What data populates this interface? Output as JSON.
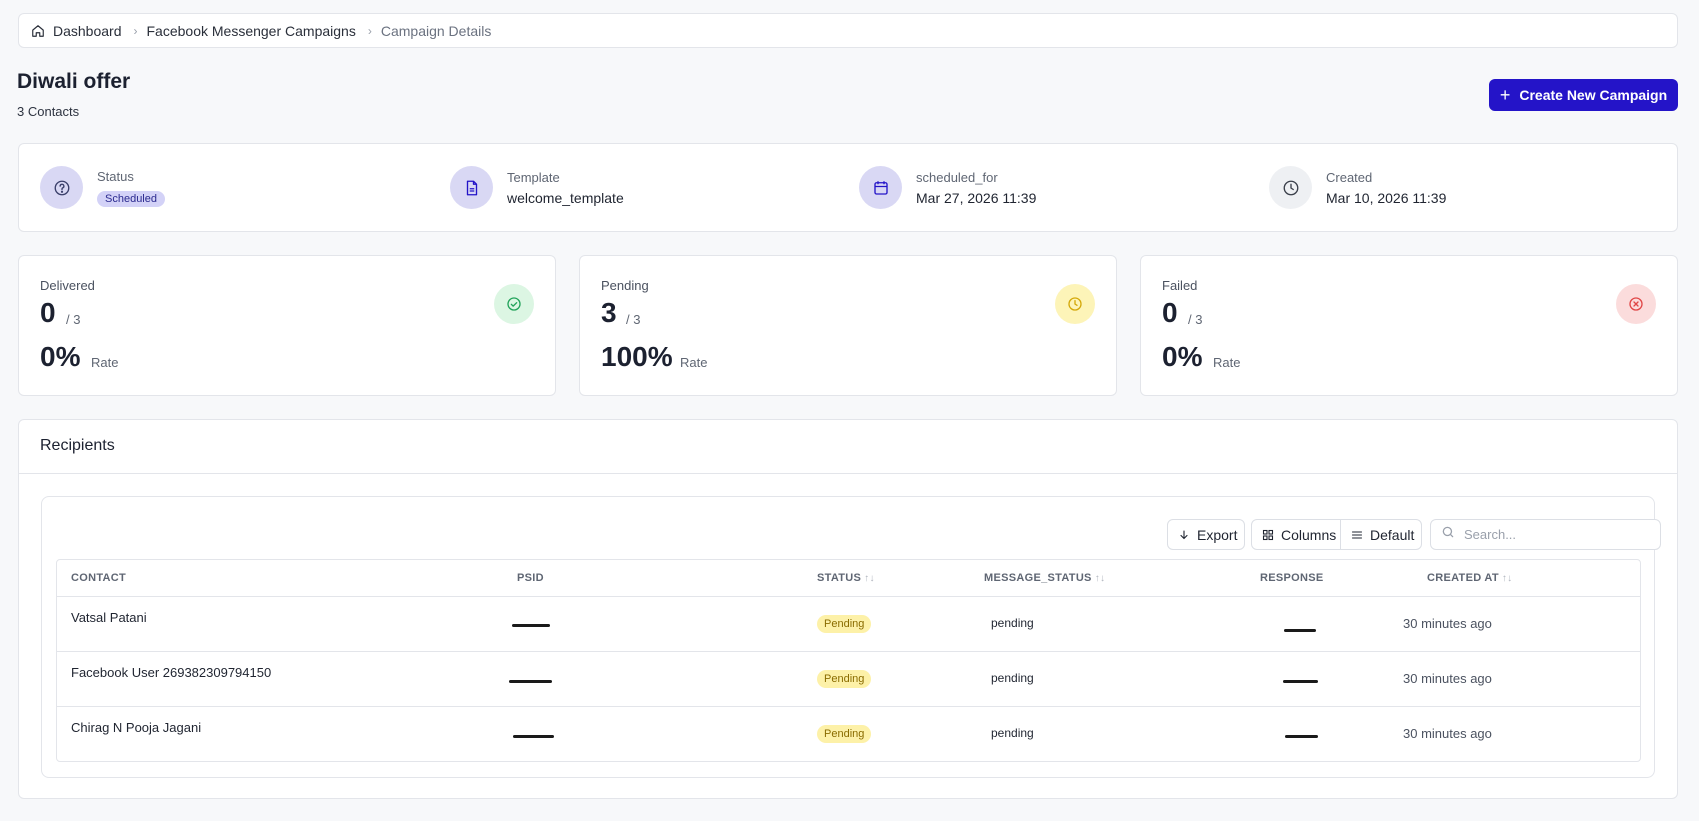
{
  "breadcrumb": {
    "items": [
      "Dashboard",
      "Facebook Messenger Campaigns",
      "Campaign Details"
    ]
  },
  "header": {
    "title": "Diwali offer",
    "subtitle": "3 Contacts",
    "create_button": "Create New Campaign"
  },
  "info": {
    "status_label": "Status",
    "status_value": "Scheduled",
    "template_label": "Template",
    "template_value": "welcome_template",
    "scheduled_label": "scheduled_for",
    "scheduled_value": "Mar 27, 2026 11:39",
    "created_label": "Created",
    "created_value": "Mar 10, 2026 11:39"
  },
  "stats": [
    {
      "label": "Delivered",
      "count": "0",
      "total": "/ 3",
      "rate": "0%",
      "rate_label": "Rate",
      "icon": "check-circle-icon",
      "color": "#22a35a"
    },
    {
      "label": "Pending",
      "count": "3",
      "total": "/ 3",
      "rate": "100%",
      "rate_label": "Rate",
      "icon": "clock-icon",
      "color": "#d4a80a"
    },
    {
      "label": "Failed",
      "count": "0",
      "total": "/ 3",
      "rate": "0%",
      "rate_label": "Rate",
      "icon": "x-circle-icon",
      "color": "#e04646"
    }
  ],
  "recipients": {
    "title": "Recipients",
    "toolbar": {
      "export": "Export",
      "columns": "Columns",
      "default": "Default",
      "search_placeholder": "Search..."
    },
    "columns": [
      "CONTACT",
      "PSID",
      "STATUS",
      "MESSAGE_STATUS",
      "RESPONSE",
      "CREATED AT"
    ],
    "rows": [
      {
        "contact": "Vatsal Patani",
        "status": "Pending",
        "message_status": "pending",
        "created_at": "30 minutes ago"
      },
      {
        "contact": "Facebook User 269382309794150",
        "status": "Pending",
        "message_status": "pending",
        "created_at": "30 minutes ago"
      },
      {
        "contact": "Chirag N Pooja Jagani",
        "status": "Pending",
        "message_status": "pending",
        "created_at": "30 minutes ago"
      }
    ]
  },
  "colors": {
    "accent": "#2414c8",
    "scheduled_badge": "#d3d2f7",
    "pending_badge": "#fdf1a8"
  }
}
